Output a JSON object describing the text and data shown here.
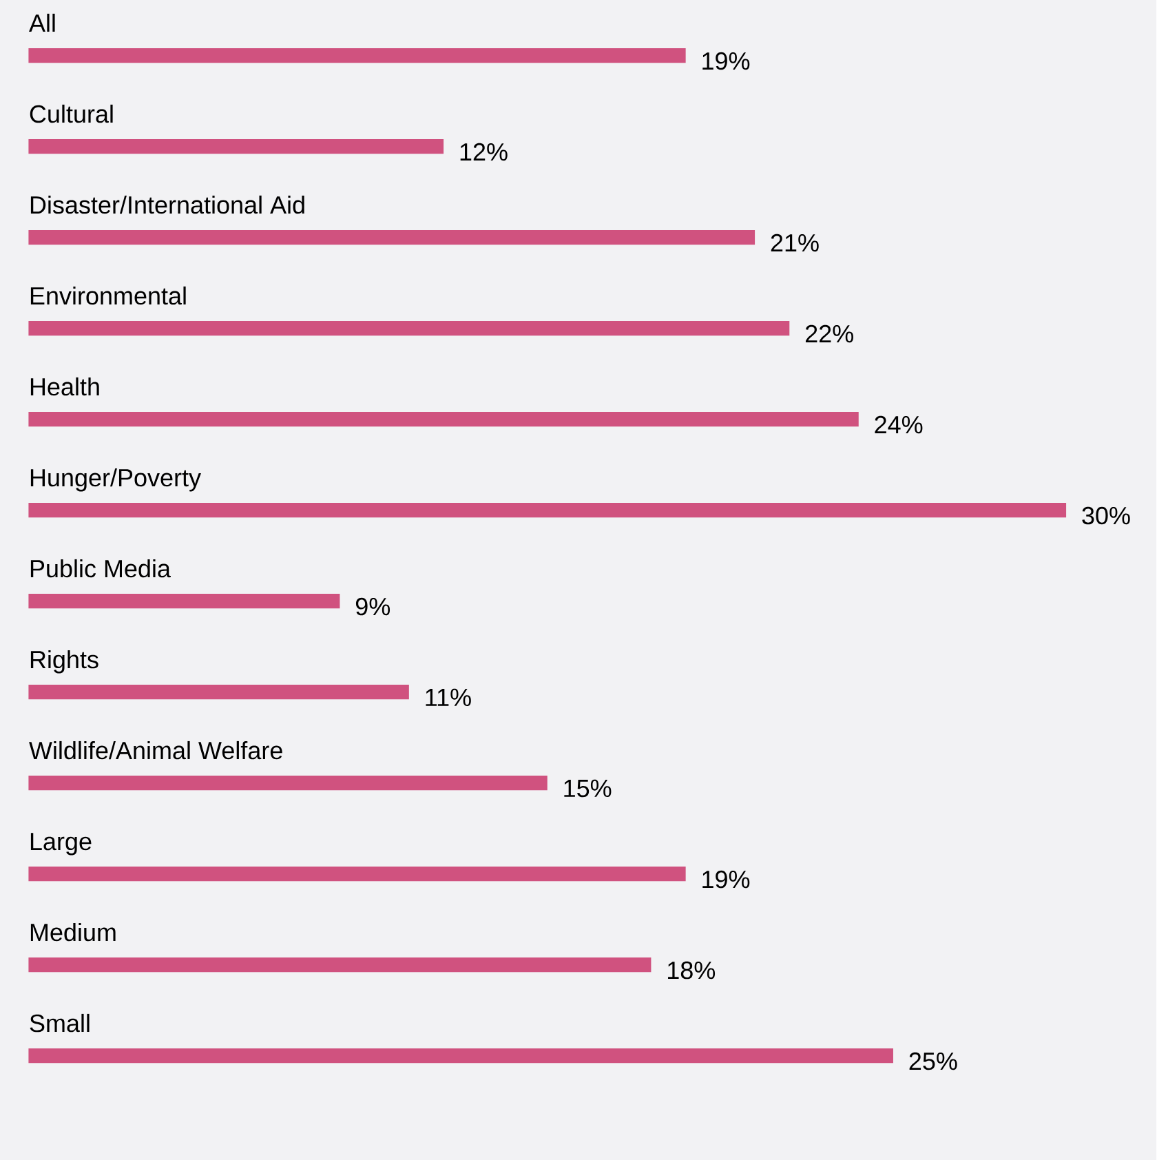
{
  "chart_data": {
    "type": "bar",
    "orientation": "horizontal",
    "color": "#d0527f",
    "categories": [
      "All",
      "Cultural",
      "Disaster/International Aid",
      "Environmental",
      "Health",
      "Hunger/Poverty",
      "Public Media",
      "Rights",
      "Wildlife/Animal Welfare",
      "Large",
      "Medium",
      "Small"
    ],
    "values": [
      19,
      12,
      21,
      22,
      24,
      30,
      9,
      11,
      15,
      19,
      18,
      25
    ],
    "value_labels": [
      "19%",
      "12%",
      "21%",
      "22%",
      "24%",
      "30%",
      "9%",
      "11%",
      "15%",
      "19%",
      "18%",
      "25%"
    ],
    "xlim": [
      0,
      30
    ],
    "tick_labels": "y"
  }
}
